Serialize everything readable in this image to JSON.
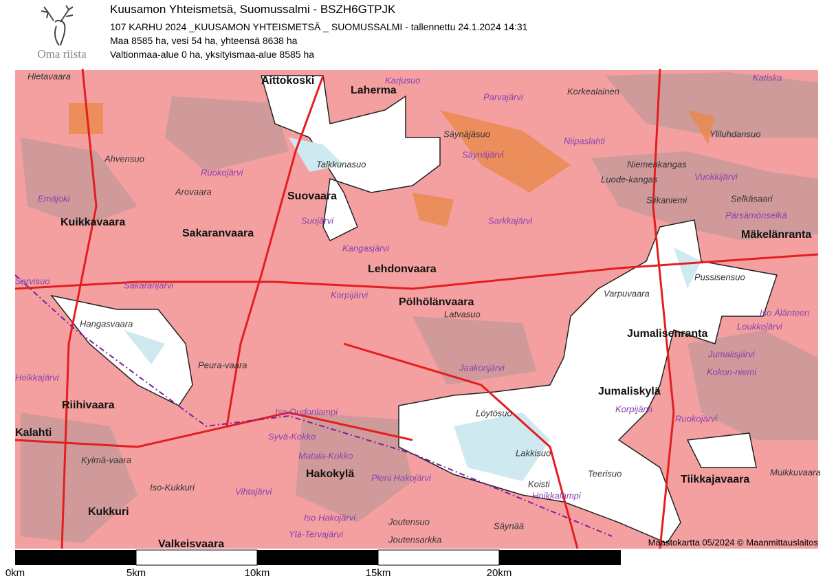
{
  "header": {
    "logo_text": "Oma riista",
    "title": "Kuusamon Yhteismetsä, Suomussalmi - BSZH6GTPJK",
    "lines": [
      "107 KARHU 2024 _KUUSAMON YHTEISMETSÄ _ SUOMUSSALMI - tallennettu 24.1.2024 14:31",
      "Maa 8585 ha, vesi 54 ha, yhteensä 8638 ha",
      "Valtionmaa-alue 0 ha, yksityismaa-alue 8585 ha"
    ]
  },
  "map": {
    "places": [
      "Aittokoski",
      "Laherma",
      "Suovaara",
      "Sakaranvaara",
      "Kuikkavaara",
      "Lehdonvaara",
      "Pölhölänvaara",
      "Riihivaara",
      "Hakokylä",
      "Kukkuri",
      "Valkeisvaara",
      "Jumaliskylä",
      "Jumalisenranta",
      "Mäkelänranta",
      "Tiikkajavaara",
      "Kalahti"
    ],
    "waters": [
      "Karjusuo",
      "Säynäjärvi",
      "Ruokojärvi",
      "Emäjoki",
      "Suojärvi",
      "Kangasjärvi",
      "Korpijärvi",
      "Sakaranjärvi",
      "Sarvisuo",
      "Hoikkajärvi",
      "Iso Oudonlampi",
      "Syvä-Kokko",
      "Matala-Kokko",
      "Hoikkalampi",
      "Vihtajärvi",
      "Iso Hakojärvi",
      "Ylä-Tervajärvi",
      "Jaakonjärvi",
      "Jumalisjärvi",
      "Vuokkijärvi",
      "Pärsämönselkä",
      "Loukkojärvi",
      "Iso Älänteen",
      "Parvajärvi",
      "Katiska",
      "Sarkkajärvi",
      "Niipaslahti",
      "Kokon-niemi",
      "Pieni Hakojärvi",
      "Korpijärvi",
      "Ruokojärvi"
    ],
    "terrain": [
      "Hietavaara",
      "Ahvensuo",
      "Arovaara",
      "Talkkunasuo",
      "Säynäjäsuo",
      "Latvasuo",
      "Hangasvaara",
      "Peura-vaara",
      "Iso-Kukkuri",
      "Löytösuo",
      "Lakkisuo",
      "Koisti",
      "Teerisuo",
      "Pussisensuo",
      "Varpuvaara",
      "Niemenkangas",
      "Luode-kangas",
      "Selkäsaari",
      "Siikaniemi",
      "Yliluhdansuo",
      "Korkealainen",
      "Muikkuvaara",
      "Joutensuo",
      "Joutensarkka",
      "Säynää",
      "Kylmä-vaara"
    ],
    "attribution": "Maastokartta 05/2024 © Maanmittauslaitos"
  },
  "scale_bar": {
    "labels": [
      "0km",
      "5km",
      "10km",
      "15km",
      "20km"
    ]
  }
}
